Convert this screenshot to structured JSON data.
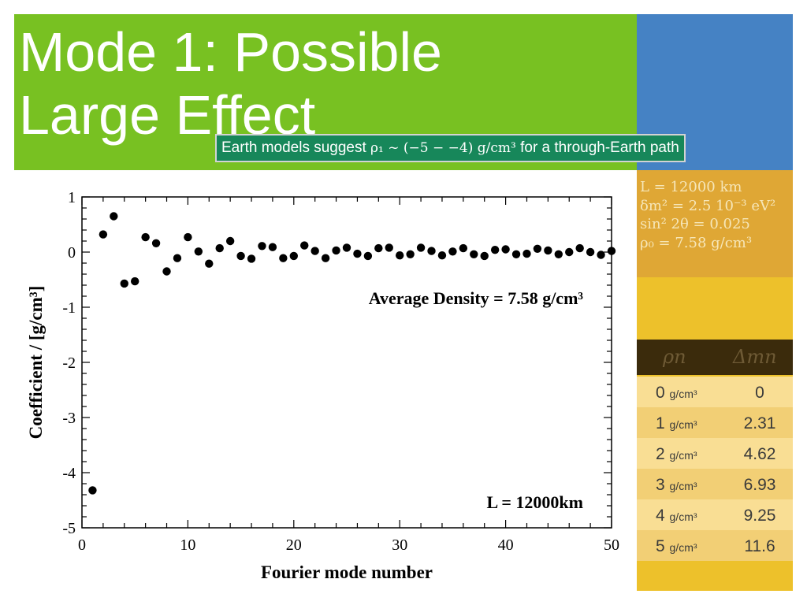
{
  "slide": {
    "title": "Mode 1: Possible\n Large Effect",
    "callout": {
      "text_before": "Earth models suggest ",
      "math": "ρ₁ ~ (−5 − −4) g/cm³",
      "text_after": " for a through-Earth path"
    },
    "params": [
      "L = 12000 km",
      "δm² = 2.5 10⁻³ eV²",
      "sin² 2θ = 0.025",
      "ρ₀ = 7.58 g/cm³"
    ],
    "table": {
      "headers": [
        "ρn",
        "Δmn"
      ],
      "rows": [
        {
          "rho": "0",
          "unit": "g/cm³",
          "delta": "0"
        },
        {
          "rho": "1",
          "unit": "g/cm³",
          "delta": "2.31"
        },
        {
          "rho": "2",
          "unit": "g/cm³",
          "delta": "4.62"
        },
        {
          "rho": "3",
          "unit": "g/cm³",
          "delta": "6.93"
        },
        {
          "rho": "4",
          "unit": "g/cm³",
          "delta": "9.25"
        },
        {
          "rho": "5",
          "unit": "g/cm³",
          "delta": "11.6"
        }
      ]
    },
    "colors": {
      "green": "#78c122",
      "blue": "#4582c4",
      "orange": "#dfa735",
      "yellow": "#edc12b",
      "callout": "#17875a"
    }
  },
  "chart_data": {
    "type": "scatter",
    "xlabel": "Fourier mode number",
    "ylabel": "Coefficient / [g/cm³]",
    "xlim": [
      0,
      50
    ],
    "ylim": [
      -5,
      1
    ],
    "xticks": [
      0,
      10,
      20,
      30,
      40,
      50
    ],
    "yticks": [
      1,
      0,
      -1,
      -2,
      -3,
      -4,
      -5
    ],
    "annotations": [
      "Average Density = 7.58 g/cm³",
      "L = 12000km"
    ],
    "points": {
      "x": [
        1,
        2,
        3,
        4,
        5,
        6,
        7,
        8,
        9,
        10,
        11,
        12,
        13,
        14,
        15,
        16,
        17,
        18,
        19,
        20,
        21,
        22,
        23,
        24,
        25,
        26,
        27,
        28,
        29,
        30,
        31,
        32,
        33,
        34,
        35,
        36,
        37,
        38,
        39,
        40,
        41,
        42,
        43,
        44,
        45,
        46,
        47,
        48,
        49,
        50
      ],
      "y": [
        -4.32,
        0.32,
        0.65,
        -0.57,
        -0.53,
        0.27,
        0.16,
        -0.35,
        -0.11,
        0.27,
        0.01,
        -0.21,
        0.07,
        0.2,
        -0.07,
        -0.12,
        0.11,
        0.09,
        -0.11,
        -0.07,
        0.12,
        0.02,
        -0.11,
        0.03,
        0.08,
        -0.03,
        -0.07,
        0.07,
        0.08,
        -0.06,
        -0.04,
        0.08,
        0.02,
        -0.06,
        0.01,
        0.07,
        -0.04,
        -0.07,
        0.04,
        0.05,
        -0.04,
        -0.03,
        0.06,
        0.03,
        -0.04,
        0.0,
        0.07,
        0.0,
        -0.05,
        0.02
      ]
    }
  }
}
